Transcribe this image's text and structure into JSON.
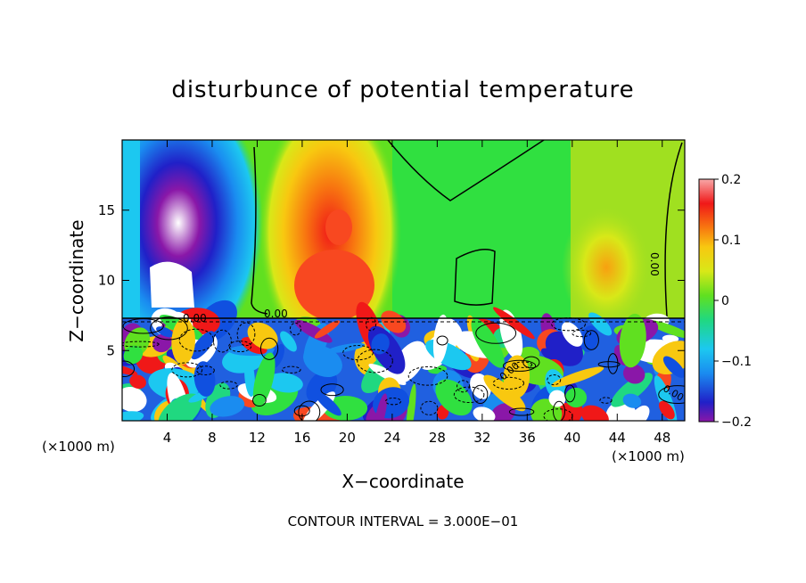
{
  "chart_data": {
    "type": "heatmap",
    "title": "disturbunce of potential temperature",
    "xlabel": "X−coordinate",
    "ylabel": "Z−coordinate",
    "x_unit": "(×1000 m)",
    "z_unit": "(×1000 m)",
    "xlim": [
      0,
      50
    ],
    "ylim": [
      0,
      20
    ],
    "x_ticks": [
      4,
      8,
      12,
      16,
      20,
      24,
      28,
      32,
      36,
      40,
      44,
      48
    ],
    "y_ticks": [
      5,
      10,
      15
    ],
    "colorbar": {
      "range": [
        -0.2,
        0.2
      ],
      "ticks": [
        0.2,
        0.1,
        0,
        -0.1,
        -0.2
      ],
      "tick_labels": [
        "0.2",
        "0.1",
        "0",
        "−0.1",
        "−0.2"
      ]
    },
    "contour_labels": [
      "0.00",
      "0.00",
      "0.00",
      "0.00",
      "0.00"
    ],
    "annotation": "CONTOUR INTERVAL = 3.000E−01"
  },
  "colors": {
    "palette": [
      "#8a17a8",
      "#6a0fbf",
      "#2020c8",
      "#1050e0",
      "#1a8cf0",
      "#1cc8f0",
      "#1ce0c0",
      "#20d880",
      "#30e040",
      "#60e020",
      "#a0e020",
      "#d8e818",
      "#f8f010",
      "#f8c810",
      "#f8a010",
      "#f87810",
      "#f84820",
      "#f01818",
      "#f86a6a",
      "#f8a8a8"
    ]
  }
}
